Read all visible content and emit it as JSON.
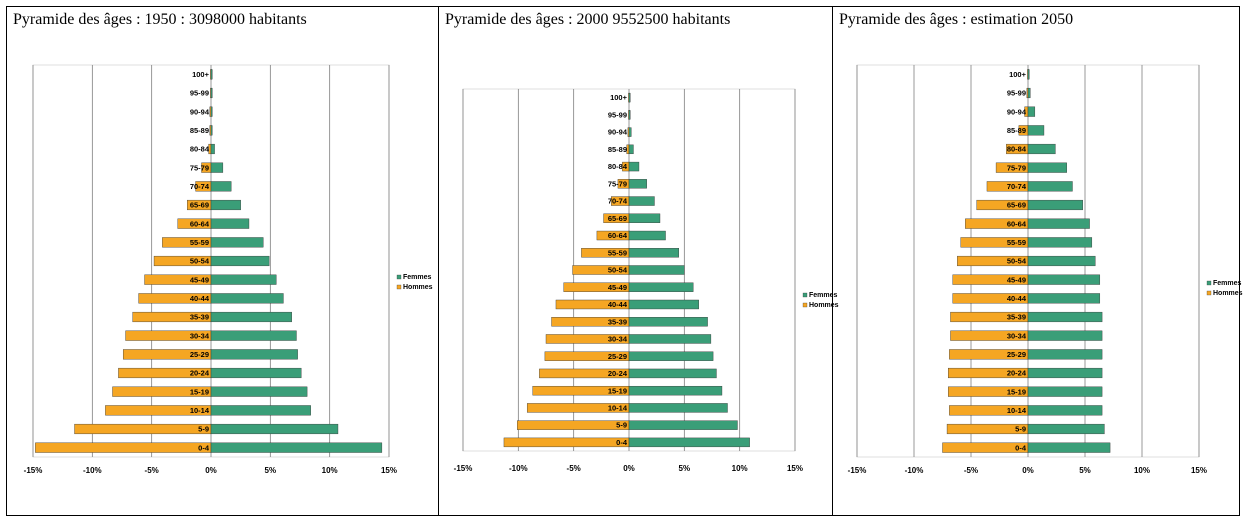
{
  "colors": {
    "femmes": "#3a9e78",
    "hommes": "#f5a623",
    "grid": "#7f7f7f",
    "bar_border": "#333333"
  },
  "headers": [
    "Pyramide des âges : 1950 : 3098000 habitants",
    "Pyramide des âges : 2000 9552500 habitants",
    "Pyramide des âges : estimation 2050"
  ],
  "chart_data": [
    {
      "type": "bar",
      "orientation": "horizontal",
      "categories": [
        "0-4",
        "5-9",
        "10-14",
        "15-19",
        "20-24",
        "25-29",
        "30-34",
        "35-39",
        "40-44",
        "45-49",
        "50-54",
        "55-59",
        "60-64",
        "65-69",
        "70-74",
        "75-79",
        "80-84",
        "85-89",
        "90-94",
        "95-99",
        "100+"
      ],
      "series": [
        {
          "name": "Femmes",
          "values": [
            14.4,
            10.7,
            8.4,
            8.1,
            7.6,
            7.3,
            7.2,
            6.8,
            6.1,
            5.5,
            4.9,
            4.4,
            3.2,
            2.5,
            1.7,
            1.0,
            0.3,
            0.1,
            0.1,
            0.05,
            0.05
          ]
        },
        {
          "name": "Hommes",
          "values": [
            -14.8,
            -11.5,
            -8.9,
            -8.3,
            -7.8,
            -7.4,
            -7.2,
            -6.6,
            -6.1,
            -5.6,
            -4.8,
            -4.1,
            -2.8,
            -2.0,
            -1.3,
            -0.8,
            -0.2,
            -0.1,
            -0.1,
            -0.05,
            -0.05
          ]
        }
      ],
      "xlim": [
        -15,
        15
      ],
      "xticks": [
        "-15%",
        "-10%",
        "-5%",
        "0%",
        "5%",
        "10%",
        "15%"
      ],
      "legend": "right",
      "grid": true
    },
    {
      "type": "bar",
      "orientation": "horizontal",
      "categories": [
        "0-4",
        "5-9",
        "10-14",
        "15-19",
        "20-24",
        "25-29",
        "30-34",
        "35-39",
        "40-44",
        "45-49",
        "50-54",
        "55-59",
        "60-64",
        "65-69",
        "70-74",
        "75-79",
        "80-84",
        "85-89",
        "90-94",
        "95-99",
        "100+"
      ],
      "series": [
        {
          "name": "Femmes",
          "values": [
            10.9,
            9.8,
            8.9,
            8.4,
            7.9,
            7.6,
            7.4,
            7.1,
            6.3,
            5.8,
            5.0,
            4.5,
            3.3,
            2.8,
            2.3,
            1.6,
            0.9,
            0.4,
            0.2,
            0.1,
            0.05
          ]
        },
        {
          "name": "Hommes",
          "values": [
            -11.3,
            -10.1,
            -9.2,
            -8.7,
            -8.1,
            -7.6,
            -7.5,
            -7.0,
            -6.6,
            -5.9,
            -5.1,
            -4.3,
            -2.9,
            -2.3,
            -1.6,
            -1.0,
            -0.6,
            -0.2,
            -0.1,
            -0.05,
            -0.05
          ]
        }
      ],
      "xlim": [
        -15,
        15
      ],
      "xticks": [
        "-15%",
        "-10%",
        "-5%",
        "0%",
        "5%",
        "10%",
        "15%"
      ],
      "legend": "right",
      "grid": true
    },
    {
      "type": "bar",
      "orientation": "horizontal",
      "categories": [
        "0-4",
        "5-9",
        "10-14",
        "15-19",
        "20-24",
        "25-29",
        "30-34",
        "35-39",
        "40-44",
        "45-49",
        "50-54",
        "55-59",
        "60-64",
        "65-69",
        "70-74",
        "75-79",
        "80-84",
        "85-89",
        "90-94",
        "95-99",
        "100+"
      ],
      "series": [
        {
          "name": "Femmes",
          "values": [
            7.2,
            6.7,
            6.5,
            6.5,
            6.5,
            6.5,
            6.5,
            6.5,
            6.3,
            6.3,
            5.9,
            5.6,
            5.4,
            4.8,
            3.9,
            3.4,
            2.4,
            1.4,
            0.6,
            0.2,
            0.05
          ]
        },
        {
          "name": "Hommes",
          "values": [
            -7.5,
            -7.1,
            -6.9,
            -7.0,
            -7.0,
            -6.9,
            -6.8,
            -6.8,
            -6.6,
            -6.6,
            -6.2,
            -5.9,
            -5.5,
            -4.5,
            -3.6,
            -2.8,
            -1.9,
            -0.8,
            -0.3,
            -0.1,
            -0.05
          ]
        }
      ],
      "xlim": [
        -15,
        15
      ],
      "xticks": [
        "-15%",
        "-10%",
        "-5%",
        "0%",
        "5%",
        "10%",
        "15%"
      ],
      "legend": "right",
      "grid": true
    }
  ]
}
